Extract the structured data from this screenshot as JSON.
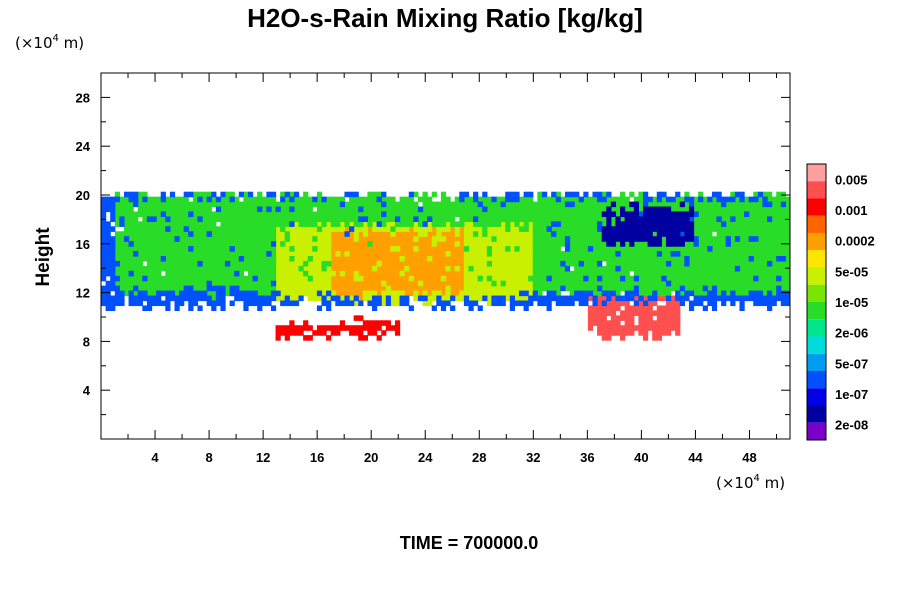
{
  "chart_data": {
    "type": "heatmap",
    "title": "H2O-s-Rain Mixing Ratio [kg/kg]",
    "ylabel": "Height",
    "x_unit": {
      "prefix": "(×10",
      "exp": "4",
      "suffix": " m)"
    },
    "y_unit": {
      "prefix": "(×10",
      "exp": "4",
      "suffix": " m)"
    },
    "xlim": [
      0,
      51
    ],
    "ylim": [
      0,
      30
    ],
    "x_ticks": [
      4,
      8,
      12,
      16,
      20,
      24,
      28,
      32,
      36,
      40,
      44,
      48
    ],
    "x_tick_labels": [
      "4",
      "8",
      "12",
      "16",
      "20",
      "24",
      "28",
      "32",
      "36",
      "40",
      "44",
      "48"
    ],
    "y_ticks": [
      4,
      8,
      12,
      16,
      20,
      24,
      28
    ],
    "y_tick_labels": [
      "4",
      "8",
      "12",
      "16",
      "20",
      "24",
      "28"
    ],
    "colorbar": {
      "colors": [
        "#ff9f9f",
        "#ff4f4f",
        "#ff0000",
        "#ff6400",
        "#ffa000",
        "#ffe600",
        "#c8f000",
        "#78e600",
        "#28dc28",
        "#00e68c",
        "#00dcdc",
        "#009cf0",
        "#0050ff",
        "#0000e6",
        "#0000a0",
        "#7800c8"
      ],
      "tick_labels": [
        "0.005",
        "0.001",
        "0.0002",
        "5e-05",
        "1e-05",
        "2e-06",
        "5e-07",
        "1e-07",
        "2e-08"
      ]
    },
    "field_regions": [
      {
        "level": 12,
        "x": [
          0,
          51
        ],
        "y": [
          11,
          20
        ],
        "note": "upper cloud deck (~1e-07)"
      },
      {
        "level": 8,
        "x": [
          1,
          51
        ],
        "y": [
          12,
          19.8
        ],
        "note": "broad 1e-05 region"
      },
      {
        "level": 6,
        "x": [
          13,
          32
        ],
        "y": [
          11.5,
          17.5
        ],
        "note": "5e-05 core"
      },
      {
        "level": 4,
        "x": [
          17,
          27
        ],
        "y": [
          12,
          17
        ],
        "note": "0.0002 maximum"
      },
      {
        "level": 14,
        "x": [
          37,
          44
        ],
        "y": [
          16,
          19
        ],
        "note": "low-value dark blue patch"
      },
      {
        "level": 1,
        "x": [
          36,
          43
        ],
        "y": [
          8.5,
          11.5
        ],
        "note": "0.005 rain core"
      },
      {
        "level": 2,
        "x": [
          13,
          22
        ],
        "y": [
          8.5,
          9.5
        ],
        "note": "lower rain band"
      }
    ]
  },
  "footer": {
    "time_label": "TIME = 700000.0"
  }
}
